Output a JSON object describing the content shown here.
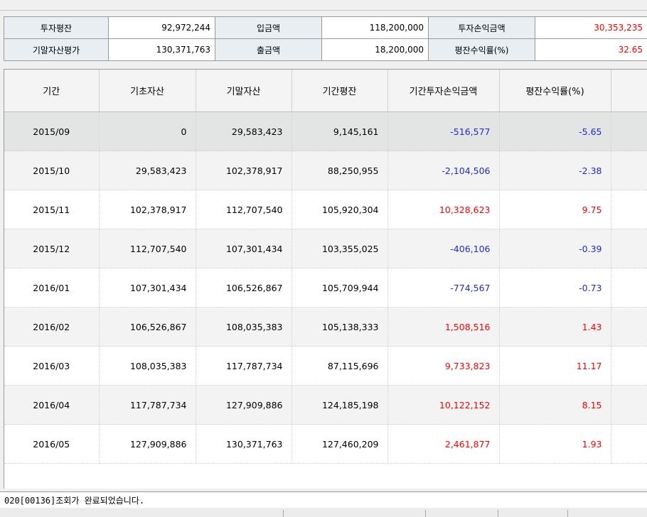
{
  "summary": {
    "row1": [
      {
        "label": "투자평잔",
        "value": "92,972,244"
      },
      {
        "label": "입금액",
        "value": "118,200,000"
      },
      {
        "label": "투자손익금액",
        "value": "30,353,235"
      }
    ],
    "row2": [
      {
        "label": "기말자산평가",
        "value": "130,371,763"
      },
      {
        "label": "출금액",
        "value": "18,200,000"
      },
      {
        "label": "평잔수익률(%)",
        "value": "32.65"
      }
    ]
  },
  "grid": {
    "headers": [
      "기간",
      "기초자산",
      "기말자산",
      "기간평잔",
      "기간투자손익금액",
      "평잔수익률(%)",
      ""
    ],
    "rows": [
      [
        "2015/09",
        "0",
        "29,583,423",
        "9,145,161",
        "-516,577",
        "-5.65"
      ],
      [
        "2015/10",
        "29,583,423",
        "102,378,917",
        "88,250,955",
        "-2,104,506",
        "-2.38"
      ],
      [
        "2015/11",
        "102,378,917",
        "112,707,540",
        "105,920,304",
        "10,328,623",
        "9.75"
      ],
      [
        "2015/12",
        "112,707,540",
        "107,301,434",
        "103,355,025",
        "-406,106",
        "-0.39"
      ],
      [
        "2016/01",
        "107,301,434",
        "106,526,867",
        "105,709,944",
        "-774,567",
        "-0.73"
      ],
      [
        "2016/02",
        "106,526,867",
        "108,035,383",
        "105,138,333",
        "1,508,516",
        "1.43"
      ],
      [
        "2016/03",
        "108,035,383",
        "117,787,734",
        "87,115,696",
        "9,733,823",
        "11.17"
      ],
      [
        "2016/04",
        "117,787,734",
        "127,909,886",
        "124,185,198",
        "10,122,152",
        "8.15"
      ],
      [
        "2016/05",
        "127,909,886",
        "130,371,763",
        "127,460,209",
        "2,461,877",
        "1.93"
      ]
    ]
  },
  "status": {
    "message": "020[00136]조회가 완료되었습니다."
  },
  "colors": {
    "positive": "#ff0000",
    "negative": "#1e2ad6",
    "selected_row": "#e3e5e4"
  }
}
